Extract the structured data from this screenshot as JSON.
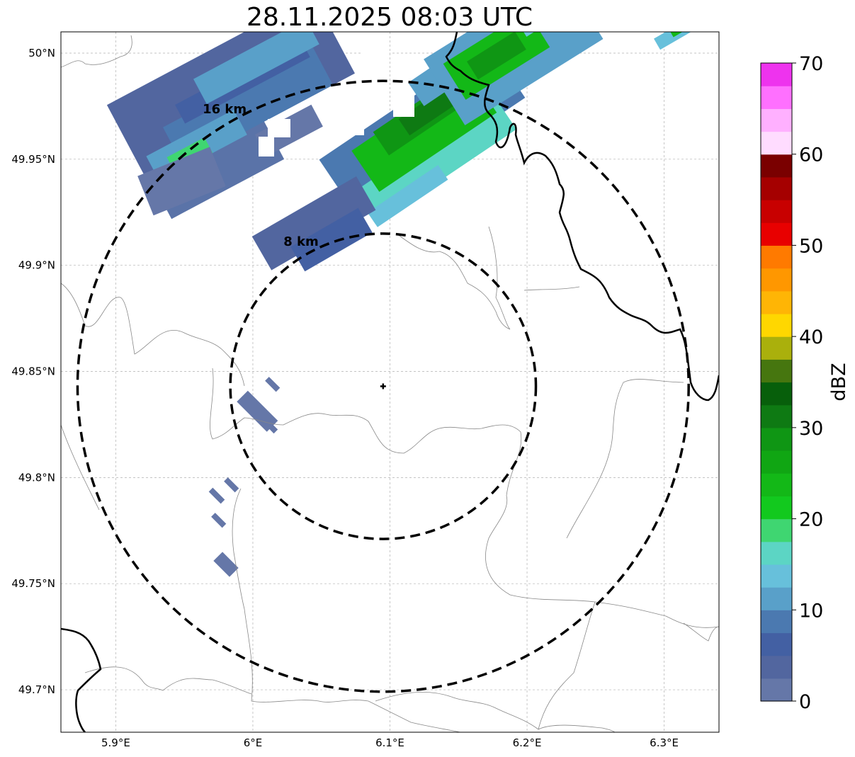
{
  "title": "28.11.2025 08:03 UTC",
  "map": {
    "lon_range": [
      5.86,
      6.34
    ],
    "lat_range": [
      49.68,
      50.01
    ],
    "lon_ticks": [
      {
        "value": 5.9,
        "label": "5.9°E"
      },
      {
        "value": 6.0,
        "label": "6°E"
      },
      {
        "value": 6.1,
        "label": "6.1°E"
      },
      {
        "value": 6.2,
        "label": "6.2°E"
      },
      {
        "value": 6.3,
        "label": "6.3°E"
      }
    ],
    "lat_ticks": [
      {
        "value": 50.0,
        "label": "50°N"
      },
      {
        "value": 49.95,
        "label": "49.95°N"
      },
      {
        "value": 49.9,
        "label": "49.9°N"
      },
      {
        "value": 49.85,
        "label": "49.85°N"
      },
      {
        "value": 49.8,
        "label": "49.8°N"
      },
      {
        "value": 49.75,
        "label": "49.75°N"
      },
      {
        "value": 49.7,
        "label": "49.7°N"
      }
    ],
    "gridlines": true,
    "radar_site": {
      "lon": 6.095,
      "lat": 49.843
    },
    "range_rings": [
      {
        "radius_km": 8,
        "label": "8 km"
      },
      {
        "radius_km": 16,
        "label": "16 km"
      }
    ]
  },
  "colorbar": {
    "label": "dBZ",
    "min": 0,
    "max": 70,
    "tick_labels": [
      "0",
      "10",
      "20",
      "30",
      "40",
      "50",
      "60",
      "70"
    ],
    "colors": [
      "#6577a8",
      "#52669f",
      "#4360a3",
      "#4b79b0",
      "#59a0c9",
      "#67c0db",
      "#5cd5c4",
      "#3fd671",
      "#12c91e",
      "#13b817",
      "#10a613",
      "#0f9614",
      "#0e7a13",
      "#075f0b",
      "#46760f",
      "#aab00c",
      "#ffd700",
      "#ffb505",
      "#ff9700",
      "#ff7a00",
      "#e80000",
      "#c80000",
      "#a50000",
      "#7a0000",
      "#ffdcff",
      "#ffb0ff",
      "#ff70ff",
      "#ee33ee"
    ]
  }
}
